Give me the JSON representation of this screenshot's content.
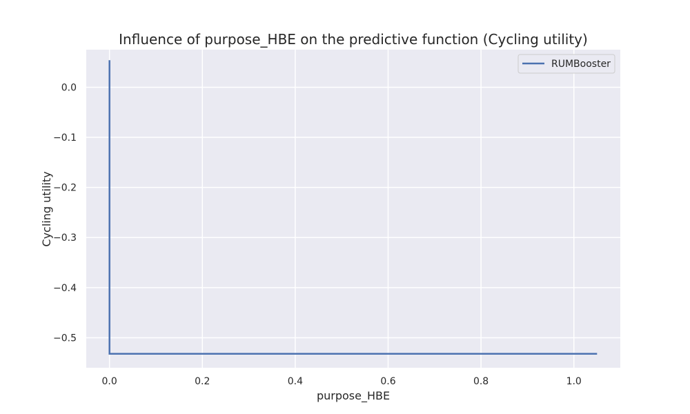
{
  "chart_data": {
    "type": "line",
    "title": "Influence of purpose_HBE on the predictive function (Cycling utility)",
    "xlabel": "purpose_HBE",
    "ylabel": "Cycling utility",
    "xlim": [
      -0.05,
      1.1
    ],
    "ylim": [
      -0.56,
      0.075
    ],
    "xticks": [
      0.0,
      0.2,
      0.4,
      0.6,
      0.8,
      1.0
    ],
    "xtick_labels": [
      "0.0",
      "0.2",
      "0.4",
      "0.6",
      "0.8",
      "1.0"
    ],
    "yticks": [
      0.0,
      -0.1,
      -0.2,
      -0.3,
      -0.4,
      -0.5
    ],
    "ytick_labels": [
      "0.0",
      "−0.1",
      "−0.2",
      "−0.3",
      "−0.4",
      "−0.5"
    ],
    "grid": true,
    "legend_position": "top-right",
    "series": [
      {
        "name": "RUMBooster",
        "color": "#4c72b0",
        "x": [
          0.0,
          0.0,
          1.05
        ],
        "y": [
          0.054,
          -0.532,
          -0.532
        ]
      }
    ]
  },
  "colors": {
    "plot_background": "#eaeaf2",
    "grid": "#ffffff",
    "text": "#262626"
  }
}
